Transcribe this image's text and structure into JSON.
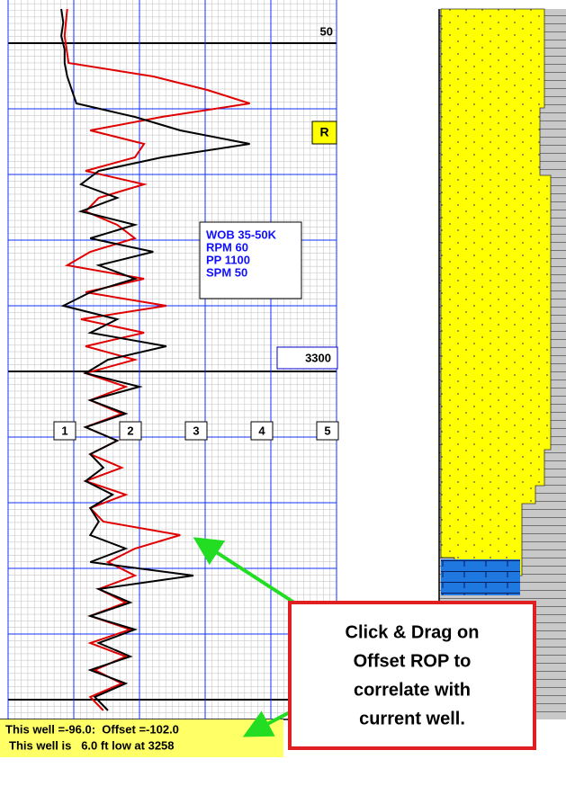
{
  "log_track": {
    "depth_labels": [
      "50",
      "3300"
    ],
    "flag": "R",
    "params": [
      "WOB 35-50K",
      "RPM 60",
      "PP 1100",
      "SPM 50"
    ],
    "xlim": [
      0,
      5
    ],
    "xticks": [
      1,
      2,
      3,
      4,
      5
    ],
    "offset_rop": {
      "color": "#e00000",
      "values": [
        0.9,
        0.88,
        0.86,
        0.89,
        0.92,
        2.21,
        3.03,
        3.68,
        2.34,
        1.25,
        2.07,
        1.93,
        1.18,
        2.07,
        1.38,
        1.18,
        1.66,
        1.93,
        1.25,
        0.9,
        2.07,
        1.18,
        2.41,
        1.11,
        2.07,
        1.18,
        1.93,
        1.18,
        1.79,
        1.25,
        1.73,
        1.18,
        1.66,
        1.25,
        1.73,
        1.18,
        1.79,
        1.25,
        1.45,
        2.62,
        1.93,
        1.52,
        1.93,
        1.38,
        1.79,
        1.25,
        1.86,
        1.25,
        1.79,
        1.32,
        1.73,
        1.25,
        1.45
      ]
    },
    "current_rop": {
      "color": "#000000",
      "values": [
        0.81,
        0.84,
        0.81,
        0.86,
        0.86,
        0.9,
        0.97,
        1.04,
        1.93,
        2.62,
        3.68,
        2.34,
        1.38,
        1.11,
        1.66,
        1.11,
        1.93,
        1.25,
        2.21,
        1.38,
        1.93,
        1.25,
        0.84,
        1.66,
        1.25,
        2.41,
        1.52,
        1.18,
        2.0,
        1.25,
        1.79,
        1.18,
        1.66,
        1.25,
        1.45,
        1.18,
        1.59,
        1.25,
        1.38,
        1.25,
        1.79,
        1.25,
        2.82,
        1.38,
        1.86,
        1.25,
        1.93,
        1.38,
        1.86,
        1.25,
        1.79,
        1.32,
        1.52
      ]
    }
  },
  "callout": [
    "Click & Drag on",
    "Offset ROP to",
    "correlate with",
    "current well."
  ],
  "status": [
    "This well =-96.0:  Offset =-102.0",
    "This well is   6.0 ft low at 3258"
  ]
}
